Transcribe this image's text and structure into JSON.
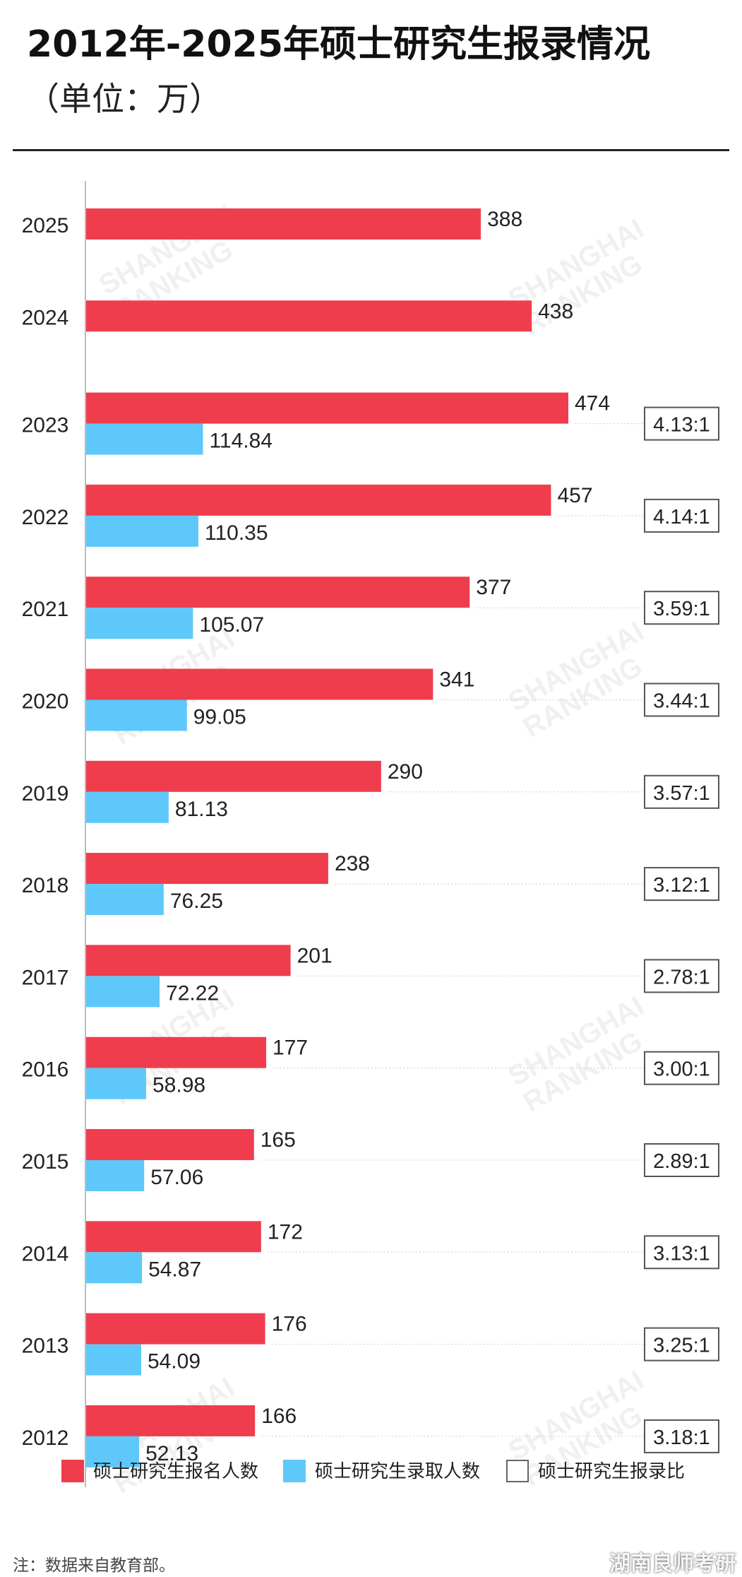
{
  "title": "2012年-2025年硕士研究生报录情况",
  "subtitle": "（单位：万）",
  "footnote": "注：数据来自教育部。",
  "credit": "湖南良师考研",
  "watermark": [
    "SHANGHAI",
    "RANKING"
  ],
  "colors": {
    "applicants": "#ef3d4d",
    "admitted": "#5ec8fa",
    "ratio_border": "#555555"
  },
  "chart_data": {
    "type": "bar",
    "orientation": "horizontal",
    "categories": [
      "2025",
      "2024",
      "2023",
      "2022",
      "2021",
      "2020",
      "2019",
      "2018",
      "2017",
      "2016",
      "2015",
      "2014",
      "2013",
      "2012"
    ],
    "series": [
      {
        "name": "硕士研究生报名人数",
        "values": [
          388,
          438,
          474,
          457,
          377,
          341,
          290,
          238,
          201,
          177,
          165,
          172,
          176,
          166
        ]
      },
      {
        "name": "硕士研究生录取人数",
        "values": [
          null,
          null,
          114.84,
          110.35,
          105.07,
          99.05,
          81.13,
          76.25,
          72.22,
          58.98,
          57.06,
          54.87,
          54.09,
          52.13
        ]
      }
    ],
    "value_labels": {
      "applicants": [
        "388",
        "438",
        "474",
        "457",
        "377",
        "341",
        "290",
        "238",
        "201",
        "177",
        "165",
        "172",
        "176",
        "166"
      ],
      "admitted": [
        null,
        null,
        "114.84",
        "110.35",
        "105.07",
        "99.05",
        "81.13",
        "76.25",
        "72.22",
        "58.98",
        "57.06",
        "54.87",
        "54.09",
        "52.13"
      ]
    },
    "ratios": [
      null,
      null,
      "4.13:1",
      "4.14:1",
      "3.59:1",
      "3.44:1",
      "3.57:1",
      "3.12:1",
      "2.78:1",
      "3.00:1",
      "2.89:1",
      "3.13:1",
      "3.25:1",
      "3.18:1"
    ],
    "legend": [
      "硕士研究生报名人数",
      "硕士研究生录取人数",
      "硕士研究生报录比"
    ],
    "legend_position": "bottom",
    "xlim": [
      0,
      474
    ],
    "grid": false
  }
}
